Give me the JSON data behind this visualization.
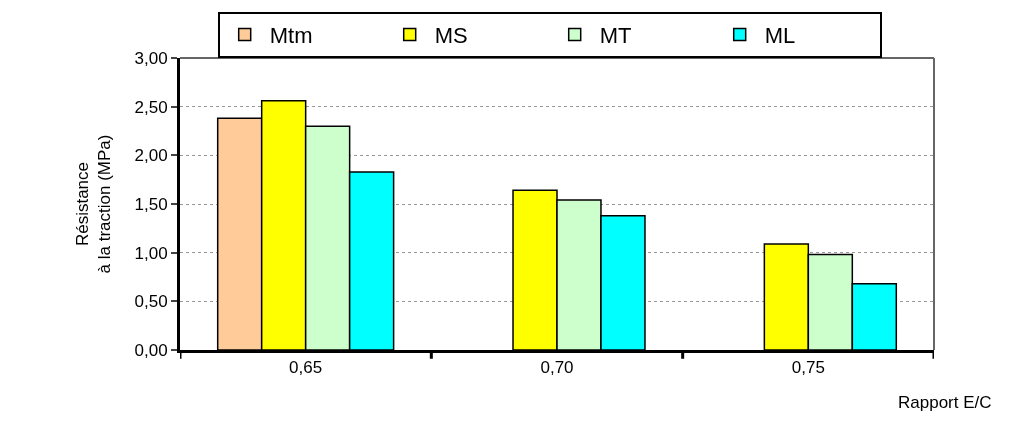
{
  "chart_data": {
    "type": "bar",
    "xlabel": "Rapport E/C",
    "ylabel": "Résistance\nà la traction (MPa)",
    "categories": [
      "0,65",
      "0,70",
      "0,75"
    ],
    "series": [
      {
        "name": "Mtm",
        "color": "#ffcc99",
        "values": [
          2.38,
          null,
          null
        ]
      },
      {
        "name": "MS",
        "color": "#ffff00",
        "values": [
          2.56,
          1.64,
          1.09
        ]
      },
      {
        "name": "MT",
        "color": "#ccffcc",
        "values": [
          2.3,
          1.54,
          0.98
        ]
      },
      {
        "name": "ML",
        "color": "#00ffff",
        "values": [
          1.83,
          1.38,
          0.68
        ]
      }
    ],
    "ylim": [
      0,
      3
    ],
    "yticks": [
      {
        "value": 0,
        "label": "0,00"
      },
      {
        "value": 0.5,
        "label": "0,50"
      },
      {
        "value": 1,
        "label": "1,00"
      },
      {
        "value": 1.5,
        "label": "1,50"
      },
      {
        "value": 2,
        "label": "2,00"
      },
      {
        "value": 2.5,
        "label": "2,50"
      },
      {
        "value": 3,
        "label": "3,00"
      }
    ],
    "grid": "y",
    "legend": "top"
  }
}
